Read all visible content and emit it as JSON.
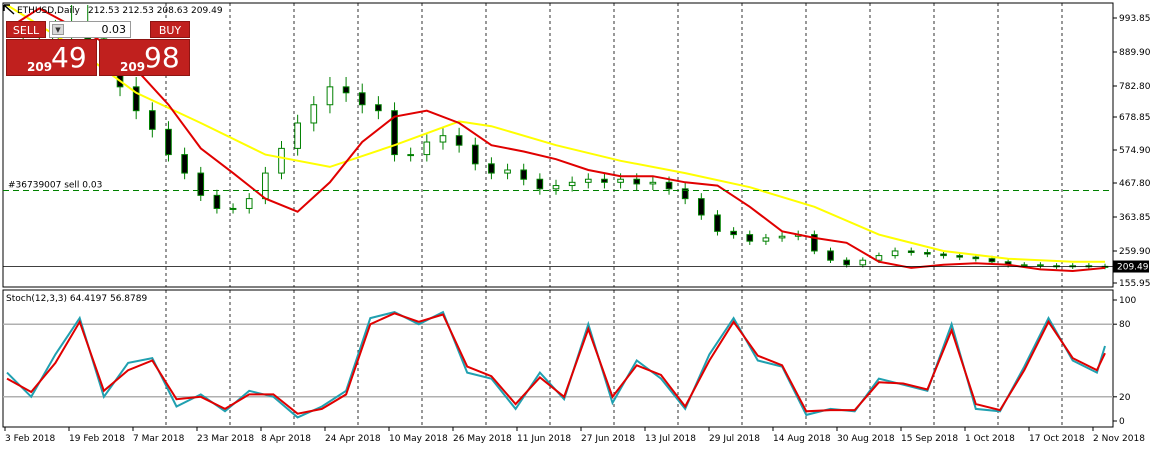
{
  "header": {
    "symbol": "ETHUSD,Daily",
    "ohlc": "212.53 212.53 208.63 209.49"
  },
  "trade_panel": {
    "sell_label": "SELL",
    "buy_label": "BUY",
    "lot_value": "0.03",
    "sell_prefix": "209",
    "sell_big": "49",
    "buy_prefix": "209",
    "buy_big": "98"
  },
  "order_line_label": "#36739007 sell 0.03",
  "current_price_label": "209.49",
  "indicator_label": "Stoch(12,3,3) 64.4197 56.8789",
  "colors": {
    "candle": "#008000",
    "ma_fast": "#e00000",
    "ma_slow": "#ffff00",
    "stoch_main": "#20a0b0",
    "stoch_signal": "#e00000",
    "order_line": "#008000",
    "sell_panel": "#c0201e"
  },
  "chart_data": [
    {
      "type": "candlestick",
      "title": "ETHUSD,Daily",
      "ylim": [
        140,
        1060
      ],
      "y_ticks": [
        "993.85",
        "889.90",
        "782.80",
        "678.85",
        "574.90",
        "467.80",
        "363.85",
        "259.90",
        "155.95"
      ],
      "x_ticks": [
        "3 Feb 2018",
        "19 Feb 2018",
        "7 Mar 2018",
        "23 Mar 2018",
        "8 Apr 2018",
        "24 Apr 2018",
        "10 May 2018",
        "26 May 2018",
        "11 Jun 2018",
        "27 Jun 2018",
        "13 Jul 2018",
        "29 Jul 2018",
        "14 Aug 2018",
        "30 Aug 2018",
        "15 Sep 2018",
        "1 Oct 2018",
        "17 Oct 2018",
        "2 Nov 2018"
      ],
      "ma_fast": {
        "x": [
          0,
          8,
          16,
          24,
          32,
          40,
          48,
          56,
          64,
          72,
          80,
          88,
          96,
          104,
          112,
          120,
          128,
          136,
          144,
          152,
          160,
          168,
          176,
          184,
          192,
          200,
          208,
          216,
          224,
          232,
          240,
          248,
          256,
          264,
          272
        ],
        "y": [
          960,
          1005,
          970,
          920,
          835,
          720,
          580,
          500,
          420,
          380,
          470,
          600,
          680,
          700,
          660,
          590,
          570,
          545,
          510,
          490,
          490,
          470,
          460,
          395,
          320,
          300,
          285,
          225,
          205,
          215,
          220,
          215,
          200,
          195,
          205
        ]
      },
      "ma_slow": {
        "x": [
          0,
          16,
          32,
          48,
          64,
          80,
          96,
          112,
          120,
          136,
          152,
          168,
          184,
          200,
          216,
          232,
          248,
          264,
          272
        ],
        "y": [
          1050,
          910,
          760,
          660,
          560,
          520,
          590,
          665,
          650,
          590,
          540,
          500,
          455,
          395,
          310,
          260,
          235,
          225,
          225
        ]
      },
      "closes": {
        "x": [
          0,
          4,
          8,
          12,
          16,
          20,
          24,
          28,
          32,
          36,
          40,
          44,
          48,
          52,
          56,
          60,
          64,
          68,
          72,
          76,
          80,
          84,
          88,
          92,
          96,
          100,
          104,
          108,
          112,
          116,
          120,
          124,
          128,
          132,
          136,
          140,
          144,
          148,
          152,
          156,
          160,
          164,
          168,
          172,
          176,
          180,
          184,
          188,
          192,
          196,
          200,
          204,
          208,
          212,
          216,
          220,
          224,
          228,
          232,
          236,
          240,
          244,
          248,
          252,
          256,
          260,
          264,
          268,
          272
        ],
        "y": [
          880,
          900,
          925,
          950,
          980,
          930,
          850,
          780,
          700,
          640,
          560,
          500,
          430,
          390,
          390,
          420,
          500,
          580,
          660,
          720,
          780,
          760,
          720,
          700,
          560,
          560,
          600,
          620,
          590,
          530,
          500,
          510,
          480,
          450,
          460,
          470,
          480,
          470,
          480,
          465,
          470,
          450,
          420,
          370,
          320,
          310,
          290,
          300,
          305,
          310,
          260,
          230,
          215,
          230,
          245,
          260,
          255,
          250,
          245,
          240,
          235,
          225,
          215,
          215,
          212,
          210,
          212,
          210,
          209
        ]
      },
      "current_price": 209.49,
      "order_price": 445
    },
    {
      "type": "line",
      "title": "Stoch(12,3,3) 64.4197 56.8789",
      "ylim": [
        0,
        100
      ],
      "levels": [
        80,
        20
      ],
      "y_ticks": [
        "100",
        "80",
        "20",
        "0"
      ],
      "main": {
        "x": [
          0,
          6,
          12,
          18,
          24,
          30,
          36,
          42,
          48,
          54,
          60,
          66,
          72,
          78,
          84,
          90,
          96,
          102,
          108,
          114,
          120,
          126,
          132,
          138,
          144,
          150,
          156,
          162,
          168,
          174,
          180,
          186,
          192,
          198,
          204,
          210,
          216,
          222,
          228,
          234,
          240,
          246,
          252,
          258,
          264,
          270,
          272
        ],
        "y": [
          40,
          20,
          55,
          85,
          20,
          48,
          52,
          12,
          22,
          8,
          25,
          20,
          3,
          12,
          25,
          85,
          90,
          80,
          90,
          40,
          35,
          10,
          40,
          18,
          80,
          15,
          50,
          35,
          10,
          55,
          85,
          50,
          45,
          5,
          10,
          8,
          35,
          30,
          25,
          80,
          10,
          8,
          45,
          85,
          50,
          40,
          62
        ]
      },
      "signal": {
        "x": [
          0,
          6,
          12,
          18,
          24,
          30,
          36,
          42,
          48,
          54,
          60,
          66,
          72,
          78,
          84,
          90,
          96,
          102,
          108,
          114,
          120,
          126,
          132,
          138,
          144,
          150,
          156,
          162,
          168,
          174,
          180,
          186,
          192,
          198,
          204,
          210,
          216,
          222,
          228,
          234,
          240,
          246,
          252,
          258,
          264,
          270,
          272
        ],
        "y": [
          35,
          24,
          48,
          82,
          25,
          42,
          50,
          18,
          20,
          10,
          22,
          22,
          6,
          10,
          22,
          80,
          89,
          82,
          88,
          45,
          37,
          14,
          36,
          20,
          76,
          20,
          46,
          38,
          12,
          50,
          82,
          54,
          46,
          8,
          9,
          9,
          32,
          31,
          26,
          75,
          14,
          9,
          42,
          82,
          52,
          42,
          56
        ]
      }
    }
  ]
}
